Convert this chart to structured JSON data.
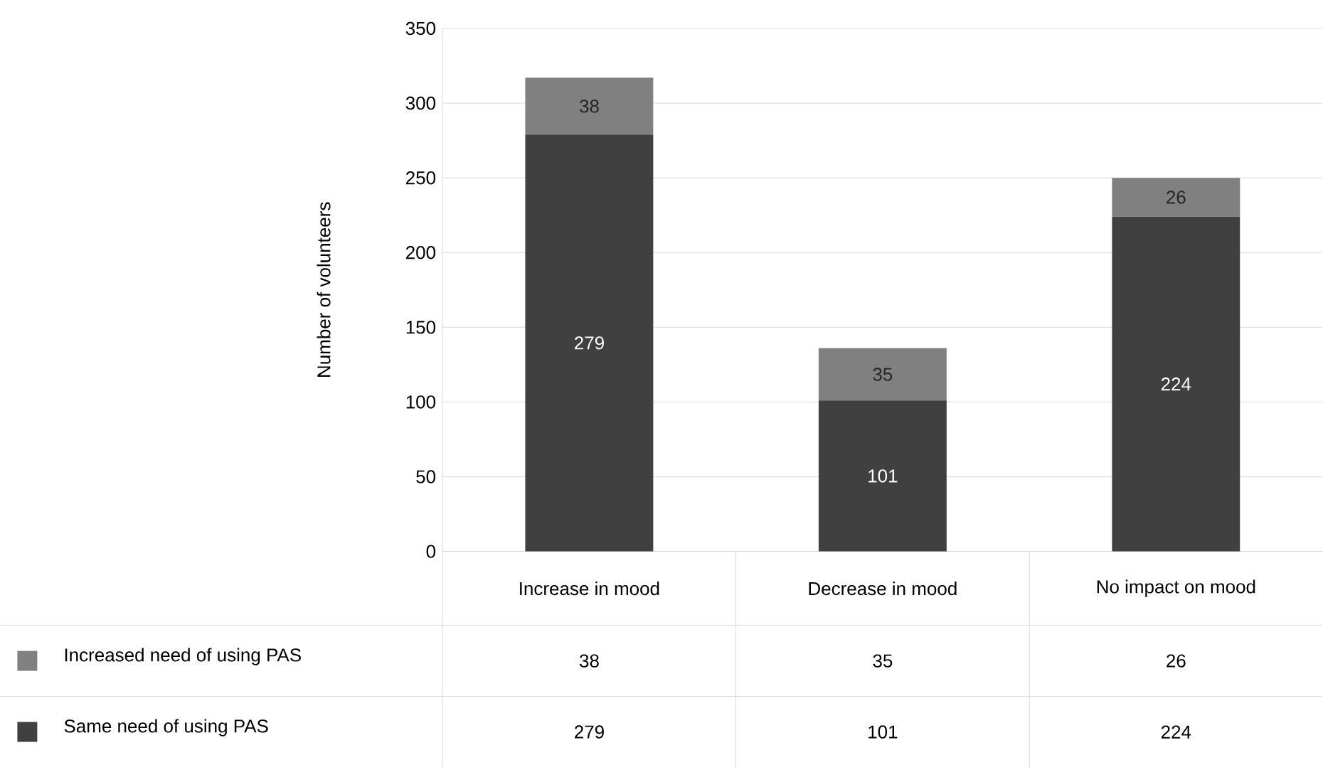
{
  "chart_data": {
    "type": "bar",
    "stacked": true,
    "ylabel": "Number of volunteers",
    "categories": [
      "Increase in mood",
      "Decrease in mood",
      "No impact on mood"
    ],
    "series": [
      {
        "name": "Same need of using PAS",
        "color": "#404040",
        "values": [
          279,
          101,
          224
        ],
        "value_labels": [
          "279",
          "101",
          "224"
        ]
      },
      {
        "name": "Increased need of using PAS",
        "color": "#808080",
        "values": [
          38,
          35,
          26
        ],
        "value_labels": [
          "38",
          "35",
          "26"
        ]
      }
    ],
    "ylim": [
      0,
      350
    ],
    "yticks": [
      0,
      50,
      100,
      150,
      200,
      250,
      300,
      350
    ],
    "grid": "y",
    "legend": "bottom",
    "data_labels": true
  }
}
